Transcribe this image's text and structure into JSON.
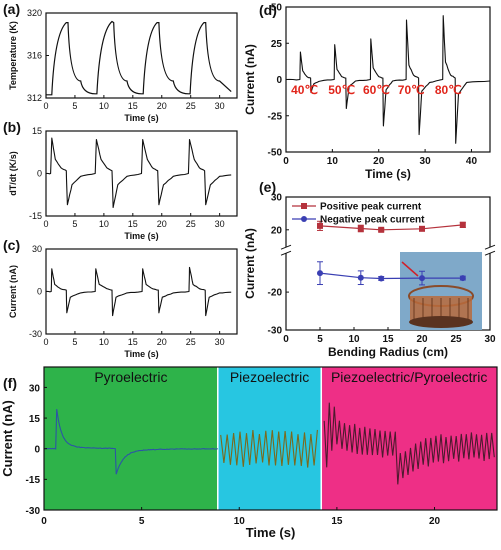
{
  "chart_data": [
    {
      "panel": "(a)",
      "type": "line",
      "xlabel": "Time (s)",
      "ylabel": "Temperature (K)",
      "xlim": [
        0,
        33
      ],
      "ylim": [
        312,
        320
      ],
      "xticks": [
        0,
        5,
        10,
        15,
        20,
        25,
        30
      ],
      "yticks": [
        312,
        316,
        320
      ],
      "series": [
        {
          "x": [
            0,
            1.0,
            3.5,
            3.8,
            6.0,
            8.5,
            8.8,
            11.4,
            11.7,
            14.0,
            16.5,
            16.8,
            19.2,
            19.5,
            22.0,
            24.6,
            24.9,
            27.3,
            27.6,
            30.0,
            32.0
          ],
          "values": [
            312.3,
            312.3,
            319.1,
            319.1,
            313.6,
            312.4,
            312.4,
            319.2,
            319.1,
            313.6,
            312.4,
            312.4,
            319.1,
            319.1,
            313.6,
            312.4,
            312.4,
            319.1,
            319.1,
            313.6,
            312.6
          ]
        }
      ]
    },
    {
      "panel": "(b)",
      "type": "line",
      "xlabel": "Time (s)",
      "ylabel": "dT/dt (K/s)",
      "xlim": [
        0,
        33
      ],
      "ylim": [
        -15,
        15
      ],
      "xticks": [
        0,
        5,
        10,
        15,
        20,
        25,
        30
      ],
      "yticks": [
        -15,
        0,
        15
      ],
      "series": [
        {
          "x": [
            0,
            0.8,
            1.0,
            1.6,
            2.6,
            3.5,
            3.7,
            4.5,
            6.0,
            8.5,
            8.7,
            9.5,
            10.5,
            11.4,
            11.6,
            12.4,
            14.0,
            16.5,
            16.7,
            17.5,
            18.4,
            19.3,
            19.5,
            20.3,
            22.0,
            24.6,
            24.8,
            25.6,
            26.5,
            27.4,
            27.6,
            28.4,
            30.0,
            32.0
          ],
          "values": [
            0,
            0,
            12.5,
            5.0,
            2.0,
            1.0,
            -11.0,
            -4.0,
            -1.0,
            0,
            12.0,
            5.0,
            2.0,
            1.0,
            -12.0,
            -4.0,
            -1.0,
            0,
            12.0,
            5.0,
            2.0,
            1.0,
            -11.0,
            -4.0,
            -1.0,
            0,
            12.0,
            5.0,
            2.0,
            1.0,
            -11.0,
            -4.0,
            -1.0,
            -0.5
          ]
        }
      ]
    },
    {
      "panel": "(c)",
      "type": "line",
      "xlabel": "Time (s)",
      "ylabel": "Current (nA)",
      "xlim": [
        0,
        33
      ],
      "ylim": [
        -30,
        30
      ],
      "xticks": [
        0,
        5,
        10,
        15,
        20,
        25,
        30
      ],
      "yticks": [
        -30,
        0,
        30
      ],
      "series": [
        {
          "x": [
            0,
            0.9,
            1.0,
            1.5,
            2.5,
            3.5,
            3.6,
            4.2,
            6.0,
            8.5,
            8.6,
            9.2,
            10.5,
            11.4,
            11.5,
            12.1,
            14.0,
            16.6,
            16.7,
            17.3,
            18.4,
            19.4,
            19.5,
            20.1,
            22.0,
            24.7,
            24.8,
            25.4,
            26.5,
            27.5,
            27.6,
            28.2,
            30.0,
            32.0
          ],
          "values": [
            0,
            0,
            16.0,
            5.0,
            2.0,
            1.0,
            -15.0,
            -4.0,
            -1.0,
            0,
            16.0,
            5.0,
            2.0,
            1.0,
            -17.0,
            -4.0,
            -1.0,
            0,
            16.0,
            5.0,
            2.0,
            1.0,
            -15.0,
            -4.0,
            -1.0,
            0,
            17.0,
            5.0,
            2.0,
            1.0,
            -17.0,
            -4.0,
            -1.0,
            -0.5
          ]
        }
      ]
    },
    {
      "panel": "(d)",
      "type": "line",
      "xlabel": "Time (s)",
      "ylabel": "Current (nA)",
      "xlim": [
        0,
        44
      ],
      "ylim": [
        -50,
        50
      ],
      "xticks": [
        0,
        10,
        20,
        30,
        40
      ],
      "yticks": [
        -50,
        -25,
        0,
        25,
        50
      ],
      "annotations": [
        "40℃",
        "50℃",
        "60℃",
        "70℃",
        "80℃"
      ],
      "annotation_x": [
        4,
        12,
        19.5,
        27,
        35
      ],
      "series": [
        {
          "x": [
            0,
            3.0,
            3.1,
            3.6,
            4.5,
            5.3,
            5.4,
            6.0,
            7.5,
            10.4,
            10.5,
            11.0,
            12.0,
            12.9,
            13.0,
            13.6,
            15.0,
            18.2,
            18.3,
            18.8,
            20.0,
            20.9,
            21.0,
            21.6,
            23.0,
            25.9,
            26.0,
            26.5,
            27.5,
            28.6,
            28.7,
            29.3,
            31.0,
            33.8,
            33.9,
            34.4,
            35.5,
            36.5,
            36.6,
            37.2,
            39.0,
            44.0
          ],
          "values": [
            0,
            0,
            19.0,
            6.0,
            2.0,
            1.0,
            -9.0,
            -3.0,
            -1.0,
            0,
            24.0,
            7.0,
            2.0,
            1.0,
            -20.0,
            -5.0,
            -1.0,
            0,
            28.0,
            8.0,
            2.0,
            1.0,
            -32.0,
            -7.0,
            -1.0,
            0,
            41.0,
            10.0,
            3.0,
            1.0,
            -38.0,
            -8.0,
            -2.0,
            0,
            44.0,
            12.0,
            3.0,
            1.0,
            -44.0,
            -10.0,
            -2.0,
            -1.0
          ]
        }
      ]
    },
    {
      "panel": "(e)",
      "type": "line",
      "xlabel": "Bending Radius (cm)",
      "ylabel": "Current (nA)",
      "xlim": [
        0,
        30
      ],
      "xticks": [
        0,
        5,
        10,
        15,
        20,
        25,
        30
      ],
      "yticks": [
        -30,
        -20,
        20,
        30
      ],
      "axis_break": true,
      "legend": "top-left",
      "series": [
        {
          "name": "Positive peak current",
          "color": "#b5323c",
          "x": [
            5,
            11,
            14,
            20,
            26
          ],
          "values": [
            21.2,
            20.4,
            20.0,
            20.3,
            21.5
          ],
          "error": [
            1.4,
            1.0,
            0.4,
            0.4,
            0.8
          ]
        },
        {
          "name": "Negative peak current",
          "color": "#3a3fb3",
          "x": [
            5,
            11,
            14,
            20,
            26
          ],
          "values": [
            -15.0,
            -16.2,
            -16.4,
            -16.3,
            -16.3
          ],
          "error": [
            3.0,
            1.8,
            0.5,
            1.8,
            0.5
          ]
        }
      ]
    },
    {
      "panel": "(f)",
      "type": "line",
      "xlabel": "Time (s)",
      "ylabel": "Current (nA)",
      "xlim": [
        0,
        23.2
      ],
      "ylim": [
        -30,
        40
      ],
      "xticks": [
        0,
        5,
        10,
        15,
        20
      ],
      "yticks": [
        -30,
        -15,
        0,
        15,
        30
      ],
      "regions": [
        {
          "label": "Pyroelectric",
          "from": 0,
          "to": 8.9,
          "color": "#2eb34a"
        },
        {
          "label": "Piezoelectric",
          "from": 8.9,
          "to": 14.2,
          "color": "#27c6e1"
        },
        {
          "label": "Piezoelectric/Pyroelectric",
          "from": 14.2,
          "to": 23.2,
          "color": "#ee2f86"
        }
      ]
    }
  ]
}
